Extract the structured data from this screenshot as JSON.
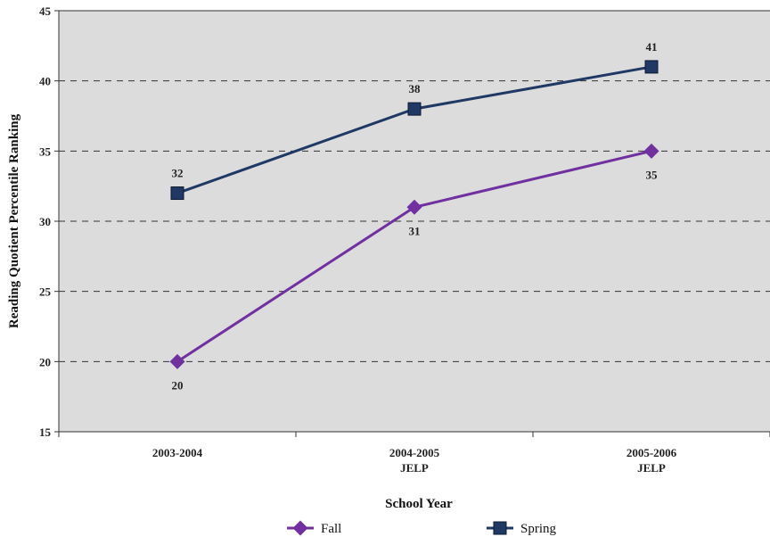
{
  "chart_data": {
    "type": "line",
    "categories": [
      [
        "2003-2004"
      ],
      [
        "2004-2005",
        "JELP"
      ],
      [
        "2005-2006",
        "JELP"
      ]
    ],
    "series": [
      {
        "name": "Fall",
        "values": [
          20,
          31,
          35
        ],
        "color": "#7030a0",
        "marker": "diamond",
        "label_position": "below"
      },
      {
        "name": "Spring",
        "values": [
          32,
          38,
          41
        ],
        "color": "#1f3864",
        "marker": "square",
        "label_position": "above"
      }
    ],
    "xlabel": "School Year",
    "ylabel": "Reading Quotient Percentile Ranking",
    "ylim": [
      15,
      45
    ],
    "yticks": [
      15,
      20,
      25,
      30,
      35,
      40,
      45
    ],
    "grid": "horizontal dashed",
    "plot_background": "#dcdcdc",
    "legend": "bottom"
  }
}
